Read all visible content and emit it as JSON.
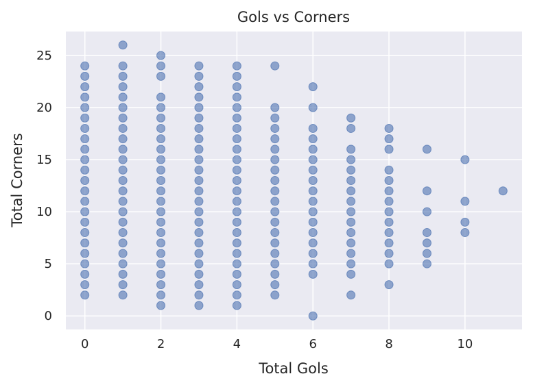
{
  "chart_data": {
    "type": "scatter",
    "title": "Gols vs Corners",
    "xlabel": "Total Gols",
    "ylabel": "Total Corners",
    "xlim": [
      -0.5,
      11.5
    ],
    "ylim": [
      -1.3,
      27.3
    ],
    "xticks": [
      0,
      2,
      4,
      6,
      8,
      10
    ],
    "yticks": [
      0,
      5,
      10,
      15,
      20,
      25
    ],
    "grid": true,
    "colors": {
      "background": "#eaeaf2",
      "point": "#4c72b0"
    },
    "columns": [
      {
        "x": 0,
        "y": [
          2,
          3,
          4,
          5,
          6,
          7,
          8,
          9,
          10,
          11,
          12,
          13,
          14,
          15,
          16,
          17,
          18,
          19,
          20,
          21,
          22,
          23,
          24
        ]
      },
      {
        "x": 1,
        "y": [
          2,
          3,
          4,
          5,
          6,
          7,
          8,
          9,
          10,
          11,
          12,
          13,
          14,
          15,
          16,
          17,
          18,
          19,
          20,
          21,
          22,
          23,
          24,
          26
        ]
      },
      {
        "x": 2,
        "y": [
          1,
          2,
          3,
          4,
          5,
          6,
          7,
          8,
          9,
          10,
          11,
          12,
          13,
          14,
          15,
          16,
          17,
          18,
          19,
          20,
          21,
          23,
          24,
          25
        ]
      },
      {
        "x": 3,
        "y": [
          1,
          2,
          3,
          4,
          5,
          6,
          7,
          8,
          9,
          10,
          11,
          12,
          13,
          14,
          15,
          16,
          17,
          18,
          19,
          20,
          21,
          22,
          23,
          24
        ]
      },
      {
        "x": 4,
        "y": [
          1,
          2,
          3,
          4,
          5,
          6,
          7,
          8,
          9,
          10,
          11,
          12,
          13,
          14,
          15,
          16,
          17,
          18,
          19,
          20,
          21,
          22,
          23,
          24
        ]
      },
      {
        "x": 5,
        "y": [
          2,
          3,
          4,
          5,
          6,
          7,
          8,
          9,
          10,
          11,
          12,
          13,
          14,
          15,
          16,
          17,
          18,
          19,
          20,
          24
        ]
      },
      {
        "x": 6,
        "y": [
          0,
          4,
          5,
          6,
          7,
          8,
          9,
          10,
          11,
          12,
          13,
          14,
          15,
          16,
          17,
          18,
          20,
          22
        ]
      },
      {
        "x": 7,
        "y": [
          2,
          4,
          5,
          6,
          7,
          8,
          9,
          10,
          11,
          12,
          13,
          14,
          15,
          16,
          18,
          19
        ]
      },
      {
        "x": 8,
        "y": [
          3,
          5,
          6,
          7,
          8,
          9,
          10,
          11,
          12,
          13,
          14,
          16,
          17,
          18
        ]
      },
      {
        "x": 9,
        "y": [
          5,
          6,
          7,
          8,
          10,
          12,
          16
        ]
      },
      {
        "x": 10,
        "y": [
          8,
          9,
          11,
          15
        ]
      },
      {
        "x": 11,
        "y": [
          12
        ]
      }
    ]
  }
}
